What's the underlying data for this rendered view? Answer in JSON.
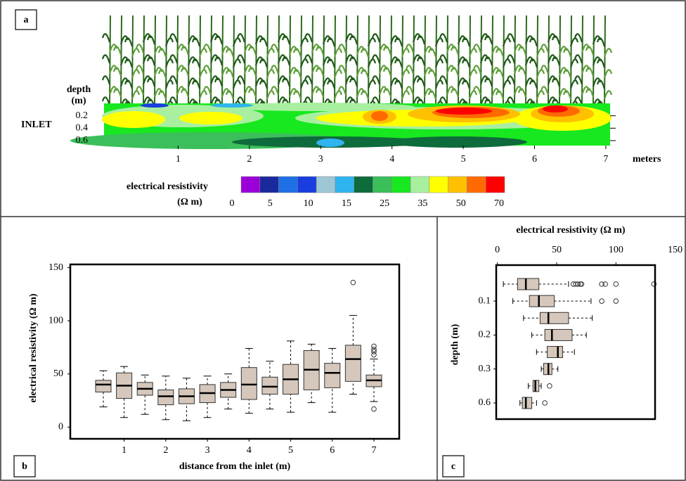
{
  "chart_data": [
    {
      "type": "contour",
      "panel": "a",
      "annotation": "INLET",
      "y_title": [
        "depth",
        "(m)"
      ],
      "x_title": "meters",
      "xlim": [
        -0.04,
        7.06
      ],
      "xticks": [
        1,
        2,
        3,
        4,
        5,
        6,
        7
      ],
      "ylim": [
        0,
        0.68
      ],
      "yticks": [
        0.2,
        0.4,
        0.6
      ],
      "legend": {
        "title": [
          "electrical resistivity",
          "(Ω m)"
        ],
        "colors": [
          "#9b00d8",
          "#1a2a9c",
          "#1f6fe6",
          "#1a3de0",
          "#9ec7d6",
          "#2fb4f0",
          "#0e6b3b",
          "#3bbf5a",
          "#17e81f",
          "#a8f0a0",
          "#ffff00",
          "#ffc000",
          "#ff6a00",
          "#ff0000"
        ],
        "ticks": [
          0,
          5,
          10,
          15,
          25,
          35,
          50,
          70
        ]
      }
    },
    {
      "type": "box",
      "panel": "b",
      "y_title": "electrical resistivity (Ω m)",
      "x_title": "distance from the inlet (m)",
      "categories": [
        null,
        "1",
        null,
        "2",
        null,
        "3",
        null,
        "4",
        null,
        "5",
        null,
        "6",
        null,
        "7"
      ],
      "ylim": [
        -11,
        153
      ],
      "yticks": [
        0,
        50,
        100,
        150
      ],
      "color": "#d5c7bb",
      "boxes": [
        {
          "min": 19,
          "q1": 33,
          "median": 40,
          "q3": 44,
          "max": 53,
          "outliers": []
        },
        {
          "min": 9,
          "q1": 27,
          "median": 39,
          "q3": 51,
          "max": 57,
          "outliers": []
        },
        {
          "min": 12,
          "q1": 30,
          "median": 36,
          "q3": 42,
          "max": 49,
          "outliers": []
        },
        {
          "min": 7,
          "q1": 21,
          "median": 29,
          "q3": 35,
          "max": 48,
          "outliers": []
        },
        {
          "min": 6,
          "q1": 22,
          "median": 29,
          "q3": 36,
          "max": 46,
          "outliers": []
        },
        {
          "min": 9,
          "q1": 23,
          "median": 32,
          "q3": 40,
          "max": 48,
          "outliers": []
        },
        {
          "min": 17,
          "q1": 28,
          "median": 35,
          "q3": 42,
          "max": 50,
          "outliers": []
        },
        {
          "min": 13,
          "q1": 26,
          "median": 40,
          "q3": 56,
          "max": 74,
          "outliers": []
        },
        {
          "min": 17,
          "q1": 31,
          "median": 38,
          "q3": 47,
          "max": 62,
          "outliers": []
        },
        {
          "min": 14,
          "q1": 31,
          "median": 45,
          "q3": 59,
          "max": 81,
          "outliers": []
        },
        {
          "min": 23,
          "q1": 35,
          "median": 54,
          "q3": 72,
          "max": 78,
          "outliers": []
        },
        {
          "min": 14,
          "q1": 37,
          "median": 51,
          "q3": 60,
          "max": 74,
          "outliers": []
        },
        {
          "min": 31,
          "q1": 43,
          "median": 64,
          "q3": 77,
          "max": 105,
          "outliers": [
            136
          ]
        },
        {
          "min": 24,
          "q1": 38,
          "median": 44,
          "q3": 49,
          "max": 64,
          "outliers": [
            17,
            68,
            71,
            73,
            76
          ]
        }
      ]
    },
    {
      "type": "hbox",
      "panel": "c",
      "x_title": "electrical resistivity (Ω m)",
      "y_title": "depth (m)",
      "categories": [
        null,
        "0.1",
        null,
        "0.2",
        null,
        "0.3",
        null,
        "0.6"
      ],
      "xlim": [
        -1,
        133
      ],
      "xticks": [
        0,
        50,
        100,
        150
      ],
      "color": "#d5c7bb",
      "boxes": [
        {
          "min": 5,
          "q1": 17,
          "median": 24,
          "q3": 35,
          "max": 60,
          "outliers": [
            64,
            66,
            68,
            70,
            71,
            88,
            91,
            100,
            132
          ]
        },
        {
          "min": 13,
          "q1": 27,
          "median": 35,
          "q3": 48,
          "max": 79,
          "outliers": [
            88,
            100
          ]
        },
        {
          "min": 22,
          "q1": 36,
          "median": 43,
          "q3": 60,
          "max": 80,
          "outliers": []
        },
        {
          "min": 29,
          "q1": 40,
          "median": 46,
          "q3": 63,
          "max": 75,
          "outliers": []
        },
        {
          "min": 33,
          "q1": 42,
          "median": 51,
          "q3": 55,
          "max": 65,
          "outliers": []
        },
        {
          "min": 37,
          "q1": 39,
          "median": 43,
          "q3": 46,
          "max": 51,
          "outliers": []
        },
        {
          "min": 26,
          "q1": 30,
          "median": 32,
          "q3": 35,
          "max": 37,
          "outliers": [
            44
          ]
        },
        {
          "min": 19,
          "q1": 21,
          "median": 24,
          "q3": 29,
          "max": 33,
          "outliers": [
            40
          ]
        }
      ]
    }
  ]
}
